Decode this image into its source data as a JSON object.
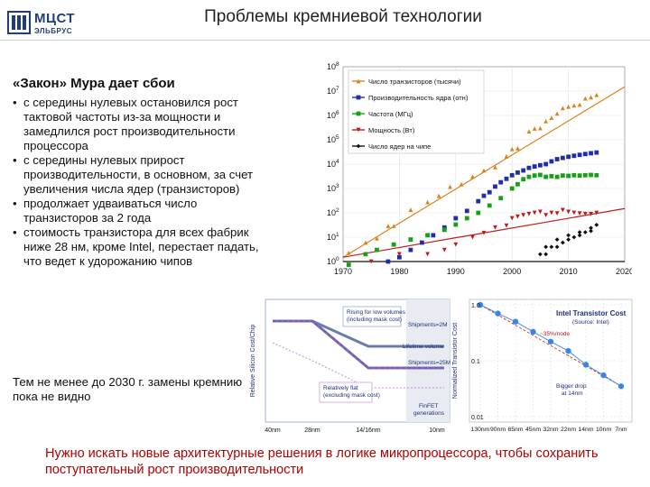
{
  "logo": {
    "brand": "МЦСТ",
    "sub": "ЭЛЬБРУС"
  },
  "title": "Проблемы кремниевой технологии",
  "subtitle": "«Закон» Мура дает сбои",
  "bullets": [
    "с середины нулевых остановился рост тактовой частоты из-за мощности и замедлился рост производительности процессора",
    "с середины нулевых прирост производительности, в основном, за счет увеличения числа ядер (транзисторов)",
    "продолжает удваиваться число транзисторов за 2 года",
    "стоимость транзистора для всех фабрик ниже 28 нм, кроме Intel, перестает падать, что ведет к удорожанию чипов"
  ],
  "note": "Тем не менее до 2030 г. замены кремнию пока не видно",
  "conclusion": "Нужно искать новые архитектурные решения в логике микропроцессора, чтобы сохранить поступательный рост производительности",
  "chart_data": [
    {
      "type": "scatter",
      "y_scale": "log",
      "ylim": [
        1,
        100000000
      ],
      "xlim": [
        1970,
        2020
      ],
      "x_ticks": [
        "1970",
        "1980",
        "1990",
        "2000",
        "2010",
        "2020"
      ],
      "y_ticks": [
        "10^0",
        "10^1",
        "10^2",
        "10^3",
        "10^4",
        "10^5",
        "10^6",
        "10^7",
        "10^8"
      ],
      "legend_position": "top-left",
      "grid": true,
      "series": [
        {
          "name": "Число транзисторов (тысячи)",
          "color": "#d9831f",
          "marker": "triangle",
          "x": [
            1971,
            1974,
            1976,
            1978,
            1979,
            1982,
            1985,
            1987,
            1989,
            1991,
            1993,
            1995,
            1997,
            1999,
            2000,
            2001,
            2003,
            2004,
            2005,
            2006,
            2007,
            2008,
            2009,
            2010,
            2011,
            2012,
            2013,
            2014,
            2015
          ],
          "y": [
            2.3,
            6,
            9,
            29,
            29,
            134,
            275,
            500,
            1180,
            1500,
            3100,
            5500,
            7500,
            21000,
            42000,
            45000,
            220000,
            290000,
            300000,
            580000,
            800000,
            1200000,
            2000000,
            2300000,
            2600000,
            2800000,
            5000000,
            5600000,
            7000000
          ],
          "trend": [
            [
              1970,
              1.5
            ],
            [
              2020,
              15000000
            ]
          ]
        },
        {
          "name": "Производительность ядра (отн)",
          "color": "#1f2fa8",
          "marker": "square",
          "x": [
            1978,
            1980,
            1982,
            1984,
            1986,
            1988,
            1990,
            1992,
            1994,
            1995,
            1996,
            1997,
            1998,
            1999,
            2000,
            2001,
            2002,
            2003,
            2004,
            2005,
            2006,
            2007,
            2008,
            2009,
            2010,
            2011,
            2012,
            2013,
            2014,
            2015
          ],
          "y": [
            1,
            1.5,
            3,
            6,
            12,
            25,
            60,
            120,
            300,
            500,
            700,
            1200,
            1800,
            2500,
            3500,
            4500,
            5500,
            7000,
            8000,
            9000,
            10000,
            13000,
            16000,
            18000,
            20000,
            22000,
            24000,
            26000,
            28000,
            30000
          ]
        },
        {
          "name": "Частота (МГц)",
          "color": "#16a116",
          "marker": "square",
          "x": [
            1971,
            1974,
            1976,
            1979,
            1982,
            1985,
            1988,
            1990,
            1992,
            1994,
            1996,
            1998,
            2000,
            2001,
            2002,
            2003,
            2004,
            2005,
            2006,
            2007,
            2008,
            2009,
            2010,
            2011,
            2012,
            2013,
            2014,
            2015
          ],
          "y": [
            0.74,
            2,
            3,
            5,
            8,
            12,
            20,
            33,
            60,
            100,
            200,
            400,
            1000,
            1500,
            2400,
            3000,
            3400,
            3600,
            3000,
            3200,
            3000,
            3400,
            3300,
            3500,
            3400,
            3500,
            3600,
            3500
          ]
        },
        {
          "name": "Мощность (Вт)",
          "color": "#c21a1a",
          "marker": "triangle-down",
          "x": [
            1975,
            1980,
            1985,
            1988,
            1990,
            1993,
            1995,
            1997,
            1999,
            2000,
            2001,
            2002,
            2003,
            2004,
            2005,
            2006,
            2007,
            2008,
            2009,
            2010,
            2011,
            2012,
            2013,
            2014,
            2015
          ],
          "y": [
            1,
            2,
            2,
            3,
            5,
            10,
            15,
            25,
            30,
            60,
            70,
            80,
            90,
            100,
            110,
            80,
            100,
            95,
            130,
            110,
            100,
            95,
            90,
            90,
            100
          ],
          "trend": [
            [
              1970,
              1.5
            ],
            [
              2020,
              150
            ]
          ]
        },
        {
          "name": "Число ядер на чипе",
          "color": "#111111",
          "marker": "diamond",
          "x": [
            2005,
            2006,
            2006,
            2007,
            2008,
            2008,
            2009,
            2010,
            2010,
            2011,
            2012,
            2012,
            2013,
            2014,
            2014,
            2015
          ],
          "y": [
            2,
            2,
            4,
            4,
            4,
            8,
            6,
            8,
            12,
            10,
            16,
            12,
            16,
            18,
            24,
            32
          ],
          "trend": [
            [
              1970,
              1
            ],
            [
              2020,
              1
            ]
          ]
        }
      ]
    },
    {
      "type": "line",
      "ylabel": "Relative Silicon Cost/Chip",
      "categories": [
        "40nm",
        "28nm",
        "14/16nm",
        "10nm"
      ],
      "annotations": [
        "Rising for low volumes (including mask cost)",
        "Shipments=2M",
        "Lifetime volume",
        "Shipments=25M",
        "Relatively flat (excluding mask cost)",
        "FinFET generations"
      ]
    },
    {
      "type": "scatter",
      "title": "Intel Transistor Cost",
      "source": "(Source: Intel)",
      "ylabel": "Normalized Transistor Cost",
      "y_scale": "log",
      "ylim": [
        0.01,
        1.0
      ],
      "y_ticks": [
        "1.0",
        "0.1",
        "0.01"
      ],
      "categories": [
        "130nm",
        "90nm",
        "65nm",
        "45nm",
        "32nm",
        "22nm",
        "14nm",
        "10nm",
        "7nm"
      ],
      "values": [
        1.0,
        0.7,
        0.5,
        0.33,
        0.22,
        0.15,
        0.085,
        0.055,
        0.035
      ],
      "annotations": [
        "~35%/node",
        "Bigger drop at 14nm"
      ]
    }
  ]
}
